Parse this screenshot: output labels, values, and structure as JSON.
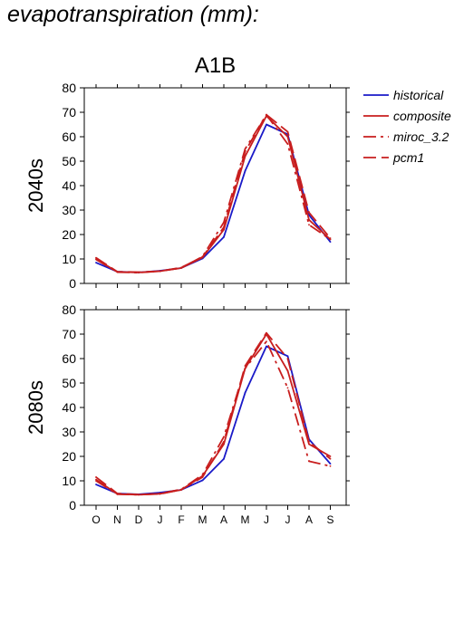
{
  "page": {
    "title": "evapotranspiration (mm):"
  },
  "colors": {
    "historical": "#1a1ac8",
    "scenario": "#c81e1e",
    "axis": "#000000"
  },
  "chart_data": [
    {
      "type": "line",
      "title": "A1B",
      "panel_label": "2040s",
      "categories": [
        "O",
        "N",
        "D",
        "J",
        "F",
        "M",
        "A",
        "M",
        "J",
        "J",
        "A",
        "S"
      ],
      "ylim": [
        0,
        80
      ],
      "yticks": [
        0,
        10,
        20,
        30,
        40,
        50,
        60,
        70,
        80
      ],
      "grid": false,
      "legend_position": "right",
      "series": [
        {
          "name": "historical",
          "style": "solid",
          "values": [
            8.5,
            4.8,
            4.5,
            5.2,
            6.3,
            10.2,
            19.0,
            46.0,
            65.0,
            61.0,
            28.0,
            17.0
          ]
        },
        {
          "name": "composite",
          "style": "solid",
          "values": [
            10.0,
            4.7,
            4.5,
            5.0,
            6.3,
            10.6,
            22.0,
            52.0,
            68.5,
            60.0,
            26.0,
            18.0
          ]
        },
        {
          "name": "miroc_3.2",
          "style": "dashdot",
          "values": [
            9.8,
            4.6,
            4.4,
            5.0,
            6.3,
            11.0,
            25.0,
            55.0,
            69.0,
            57.0,
            24.0,
            18.0
          ]
        },
        {
          "name": "pcm1",
          "style": "dashed",
          "values": [
            10.5,
            4.8,
            4.6,
            5.0,
            6.5,
            10.8,
            23.0,
            54.0,
            69.0,
            62.0,
            29.0,
            18.5
          ]
        }
      ]
    },
    {
      "type": "line",
      "title": "",
      "panel_label": "2080s",
      "categories": [
        "O",
        "N",
        "D",
        "J",
        "F",
        "M",
        "A",
        "M",
        "J",
        "J",
        "A",
        "S"
      ],
      "ylim": [
        0,
        80
      ],
      "yticks": [
        0,
        10,
        20,
        30,
        40,
        50,
        60,
        70,
        80
      ],
      "grid": false,
      "series": [
        {
          "name": "historical",
          "style": "solid",
          "values": [
            8.5,
            4.8,
            4.5,
            5.2,
            6.3,
            10.2,
            19.0,
            46.0,
            65.0,
            61.0,
            27.0,
            17.0
          ]
        },
        {
          "name": "composite",
          "style": "solid",
          "values": [
            10.5,
            4.6,
            4.3,
            4.7,
            6.3,
            12.0,
            25.0,
            56.0,
            70.0,
            55.0,
            25.0,
            20.0
          ]
        },
        {
          "name": "miroc_3.2",
          "style": "dashdot",
          "values": [
            10.0,
            4.5,
            4.3,
            4.8,
            6.5,
            12.5,
            28.0,
            56.0,
            67.0,
            48.0,
            18.0,
            16.0
          ]
        },
        {
          "name": "pcm1",
          "style": "dashed",
          "values": [
            11.5,
            4.8,
            4.4,
            4.6,
            6.4,
            11.5,
            26.0,
            57.0,
            70.5,
            60.0,
            26.0,
            19.0
          ]
        }
      ]
    }
  ]
}
